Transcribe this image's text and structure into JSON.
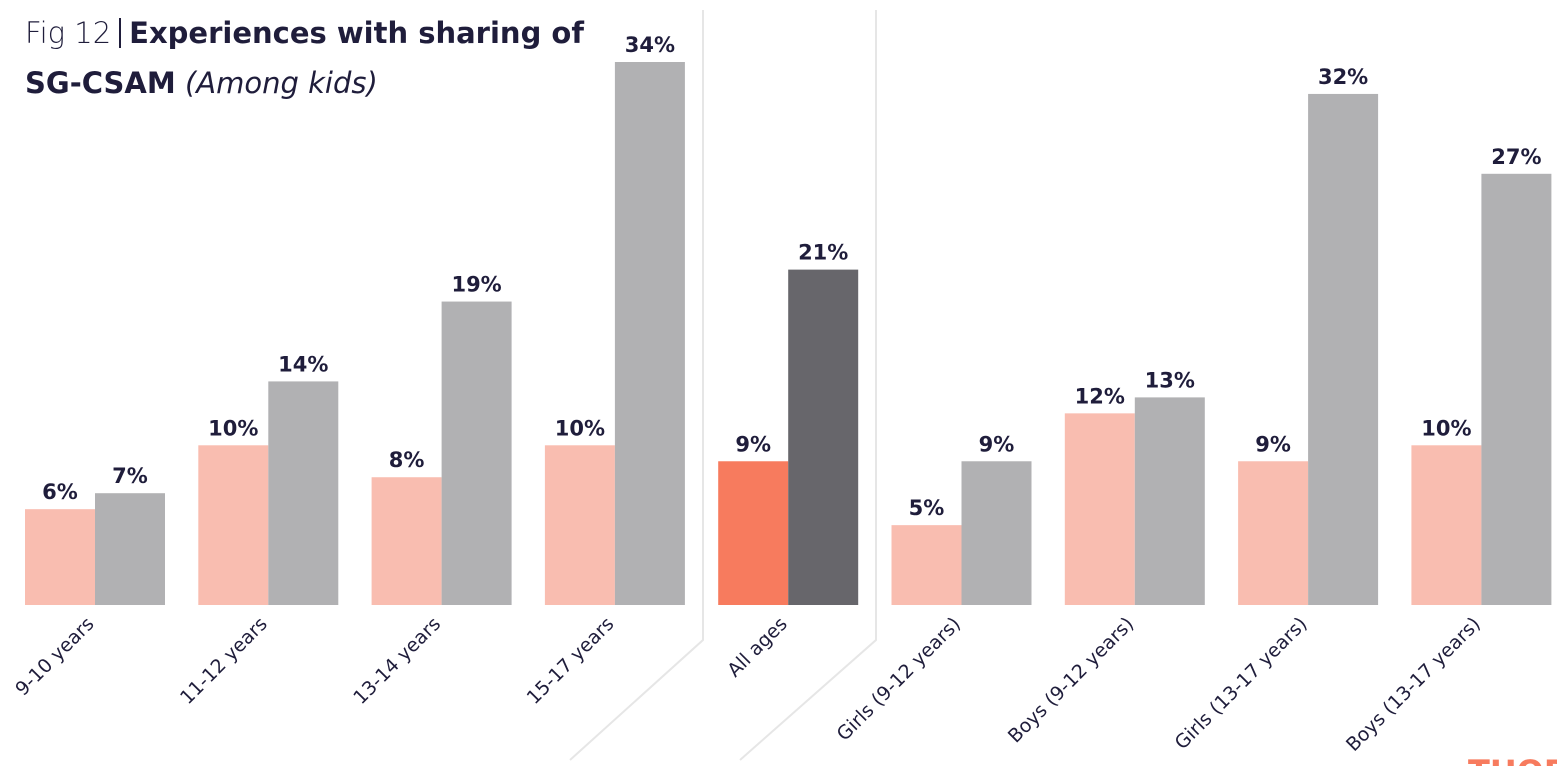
{
  "chart_data": {
    "type": "bar",
    "figure": "Fig 12",
    "title": "Experiences with sharing of SG-CSAM",
    "subtitle": "(Among kids)",
    "logo": "THORN",
    "categories": [
      "9-10 years",
      "11-12 years",
      "13-14 years",
      "15-17 years",
      "All ages",
      "Girls (9-12 years)",
      "Boys (9-12 years)",
      "Girls (13-17 years)",
      "Boys (13-17 years)"
    ],
    "series": [
      {
        "color": "#f9bdb0",
        "colors": [
          "#f9bdb0",
          "#f9bdb0",
          "#f9bdb0",
          "#f9bdb0",
          "#f77b5e",
          "#f9bdb0",
          "#f9bdb0",
          "#f9bdb0",
          "#f9bdb0"
        ],
        "values": [
          6,
          10,
          8,
          10,
          9,
          5,
          12,
          9,
          10
        ],
        "value_labels": [
          "6%",
          "10%",
          "8%",
          "10%",
          "9%",
          "5%",
          "12%",
          "9%",
          "10%"
        ]
      },
      {
        "color": "#b1b1b3",
        "colors": [
          "#b1b1b3",
          "#b1b1b3",
          "#b1b1b3",
          "#b1b1b3",
          "#67666b",
          "#b1b1b3",
          "#b1b1b3",
          "#b1b1b3",
          "#b1b1b3"
        ],
        "values": [
          7,
          14,
          19,
          34,
          21,
          9,
          13,
          32,
          27
        ],
        "value_labels": [
          "7%",
          "14%",
          "19%",
          "34%",
          "21%",
          "9%",
          "13%",
          "32%",
          "27%"
        ]
      }
    ],
    "ylim": [
      0,
      34
    ]
  }
}
